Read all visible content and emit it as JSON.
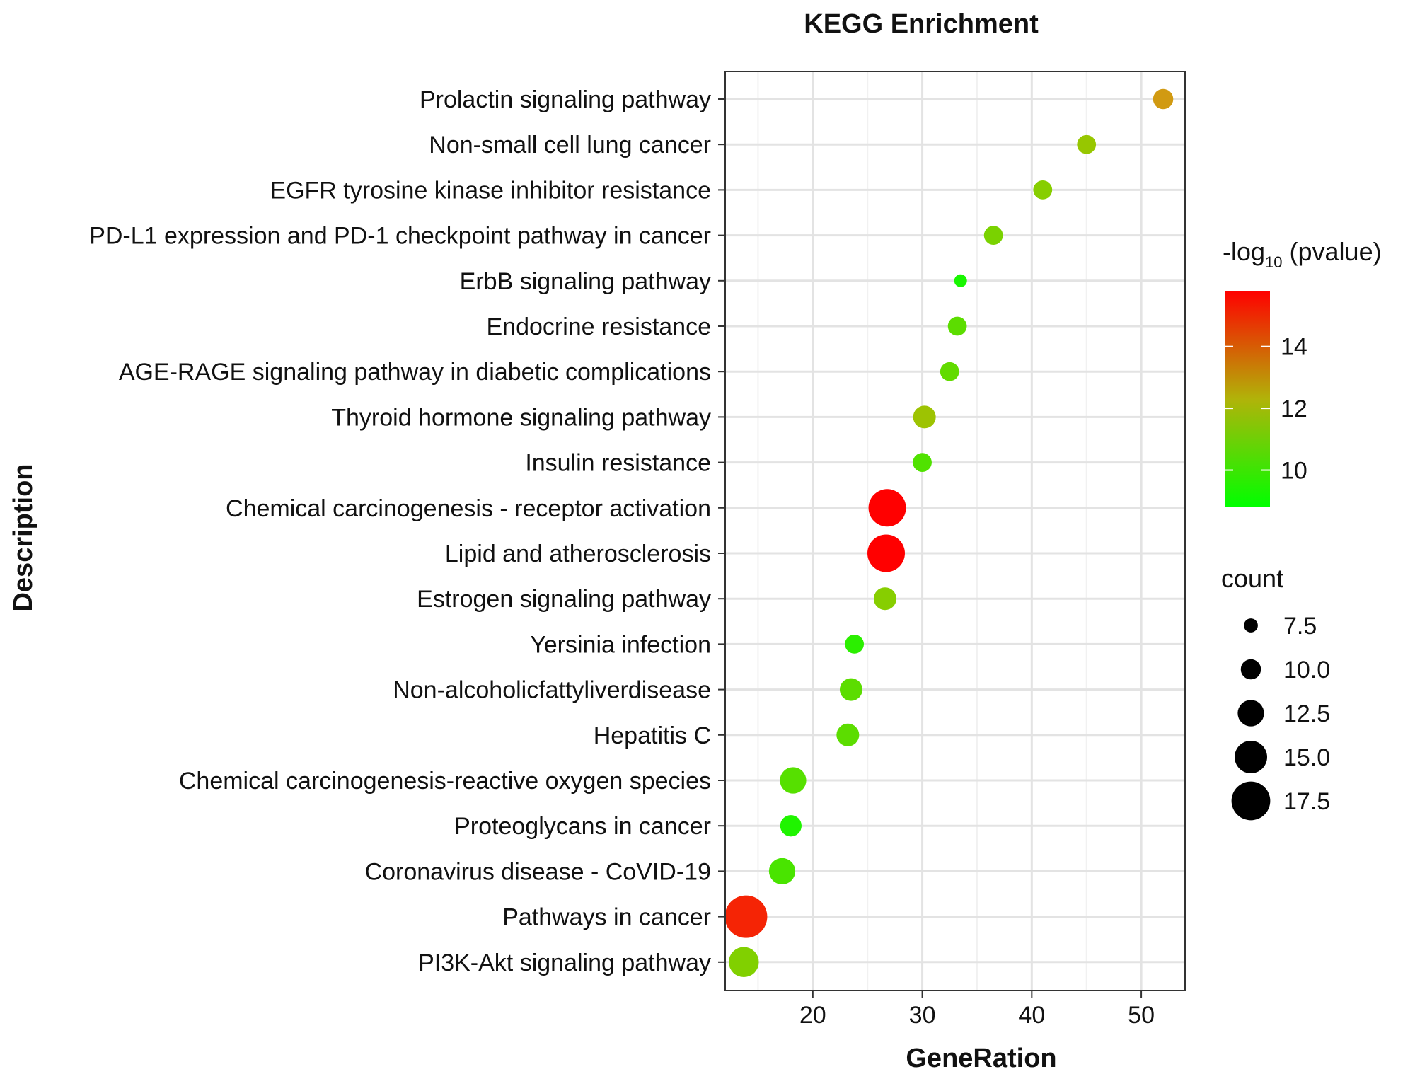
{
  "chart_data": {
    "type": "scatter",
    "title": "KEGG Enrichment",
    "xlabel": "GeneRation",
    "ylabel": "Description",
    "xlim": [
      12,
      54
    ],
    "xticks": [
      20,
      30,
      40,
      50
    ],
    "grid": true,
    "points": [
      {
        "description": "Prolactin signaling pathway",
        "x": 52,
        "pvalue_log10": 13.5,
        "count": 10.0
      },
      {
        "description": "Non-small cell lung cancer",
        "x": 45,
        "pvalue_log10": 11.3,
        "count": 9.5
      },
      {
        "description": "EGFR tyrosine kinase inhibitor resistance",
        "x": 41,
        "pvalue_log10": 11.0,
        "count": 9.5
      },
      {
        "description": "PD-L1 expression and PD-1 checkpoint pathway in cancer",
        "x": 36.5,
        "pvalue_log10": 10.8,
        "count": 9.5
      },
      {
        "description": "ErbB signaling pathway ",
        "x": 33.5,
        "pvalue_log10": 9.2,
        "count": 7.0
      },
      {
        "description": "Endocrine resistance",
        "x": 33.2,
        "pvalue_log10": 10.3,
        "count": 9.5
      },
      {
        "description": "AGE-RAGE signaling pathway in diabetic complications",
        "x": 32.5,
        "pvalue_log10": 10.4,
        "count": 9.5
      },
      {
        "description": "Thyroid hormone signaling pathway",
        "x": 30.2,
        "pvalue_log10": 11.5,
        "count": 11.0
      },
      {
        "description": "Insulin resistance",
        "x": 30.0,
        "pvalue_log10": 10.1,
        "count": 9.5
      },
      {
        "description": "Chemical carcinogenesis - receptor activation",
        "x": 26.8,
        "pvalue_log10": 15.8,
        "count": 17.0
      },
      {
        "description": "Lipid and atherosclerosis ",
        "x": 26.7,
        "pvalue_log10": 15.8,
        "count": 17.0
      },
      {
        "description": "Estrogen signaling pathway",
        "x": 26.6,
        "pvalue_log10": 11.0,
        "count": 11.0
      },
      {
        "description": "Yersinia infection",
        "x": 23.8,
        "pvalue_log10": 9.5,
        "count": 9.5
      },
      {
        "description": "Non-alcoholicfattyliverdisease",
        "x": 23.5,
        "pvalue_log10": 10.3,
        "count": 11.0
      },
      {
        "description": "Hepatitis C",
        "x": 23.2,
        "pvalue_log10": 10.3,
        "count": 11.0
      },
      {
        "description": "Chemical carcinogenesis-reactive oxygen species",
        "x": 18.2,
        "pvalue_log10": 10.2,
        "count": 12.5
      },
      {
        "description": "Proteoglycans in cancer",
        "x": 18.0,
        "pvalue_log10": 9.3,
        "count": 10.5
      },
      {
        "description": "Coronavirus disease - CoVID-19",
        "x": 17.2,
        "pvalue_log10": 10.0,
        "count": 12.5
      },
      {
        "description": "Pathways in cancer",
        "x": 13.9,
        "pvalue_log10": 15.3,
        "count": 19.0
      },
      {
        "description": "PI3K-Akt signaling pathway",
        "x": 13.7,
        "pvalue_log10": 10.9,
        "count": 14.0
      }
    ],
    "color_legend": {
      "title_prefix": "-log",
      "title_sub": "10",
      "title_suffix": " (pvalue)",
      "min": 8.8,
      "max": 15.8,
      "ticks": [
        10,
        12,
        14
      ],
      "low_color": "#00ff00",
      "high_color": "#ff0000"
    },
    "size_legend": {
      "title": "count",
      "values": [
        7.5,
        10.0,
        12.5,
        15.0,
        17.5
      ],
      "labels": [
        "7.5",
        "10.0",
        "12.5",
        "15.0",
        "17.5"
      ],
      "color": "#000000"
    }
  }
}
